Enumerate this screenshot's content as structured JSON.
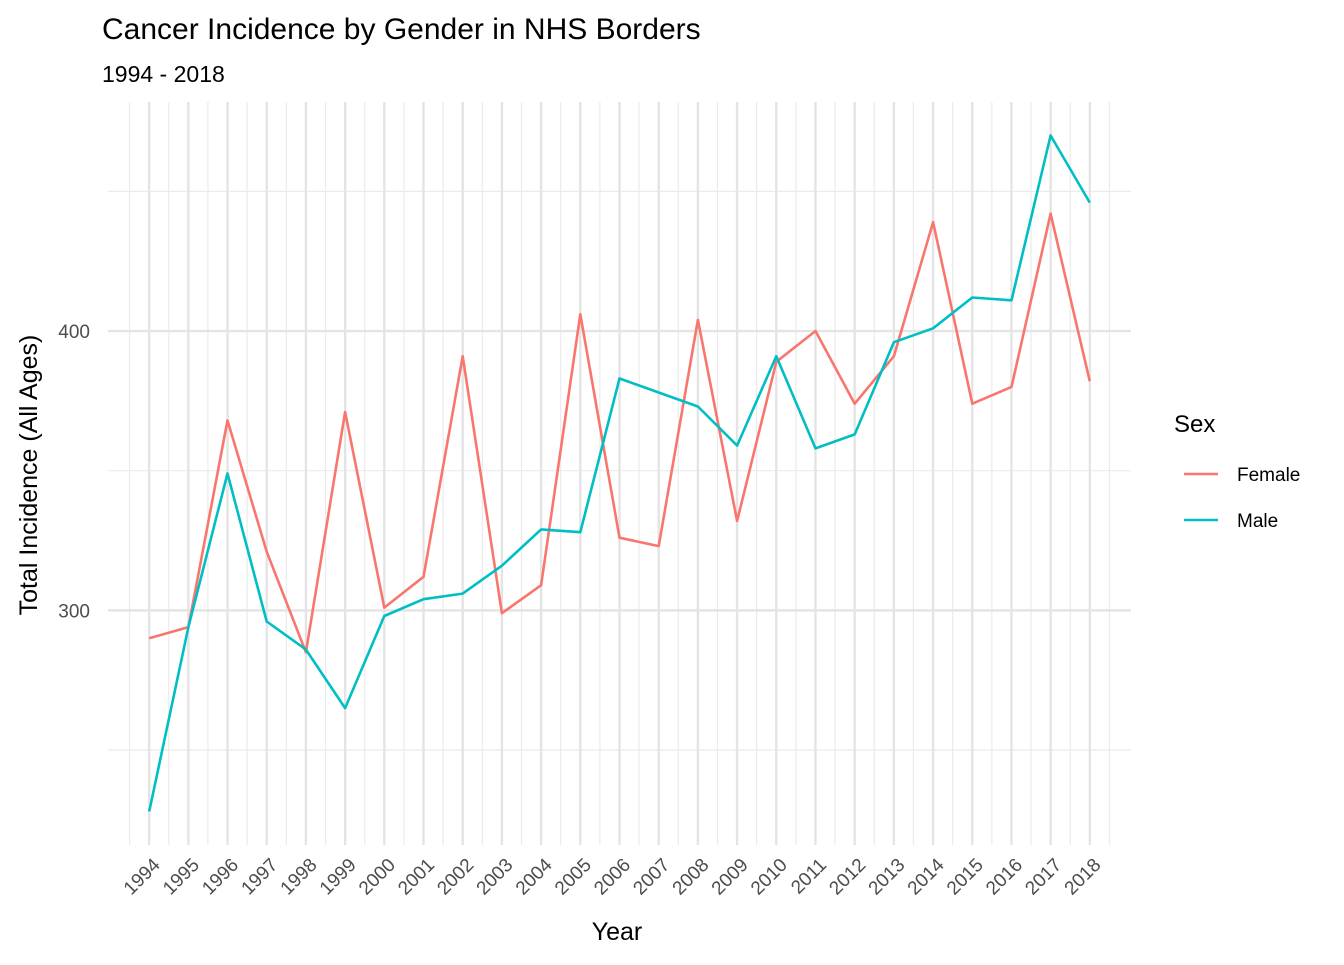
{
  "chart_data": {
    "type": "line",
    "title": "Cancer Incidence by Gender in NHS Borders",
    "subtitle": "1994 - 2018",
    "xlabel": "Year",
    "ylabel": "Total Incidence (All Ages)",
    "categories": [
      "1994",
      "1995",
      "1996",
      "1997",
      "1998",
      "1999",
      "2000",
      "2001",
      "2002",
      "2003",
      "2004",
      "2005",
      "2006",
      "2007",
      "2008",
      "2009",
      "2010",
      "2011",
      "2012",
      "2013",
      "2014",
      "2015",
      "2016",
      "2017",
      "2018"
    ],
    "x": [
      1994,
      1995,
      1996,
      1997,
      1998,
      1999,
      2000,
      2001,
      2002,
      2003,
      2004,
      2005,
      2006,
      2007,
      2008,
      2009,
      2010,
      2011,
      2012,
      2013,
      2014,
      2015,
      2016,
      2017,
      2018
    ],
    "y_ticks": [
      300,
      400
    ],
    "ylim": [
      216,
      482
    ],
    "grid": true,
    "legend": {
      "title": "Sex",
      "position": "right"
    },
    "series": [
      {
        "name": "Female",
        "color": "#F8766D",
        "values": [
          290,
          294,
          368,
          321,
          285,
          371,
          301,
          312,
          391,
          299,
          309,
          406,
          326,
          323,
          404,
          332,
          389,
          400,
          374,
          391,
          439,
          374,
          380,
          442,
          382
        ]
      },
      {
        "name": "Male",
        "color": "#00BFC4",
        "values": [
          228,
          294,
          349,
          296,
          286,
          265,
          298,
          304,
          306,
          316,
          329,
          328,
          383,
          378,
          373,
          359,
          391,
          358,
          363,
          396,
          401,
          412,
          411,
          470,
          446
        ]
      }
    ]
  }
}
